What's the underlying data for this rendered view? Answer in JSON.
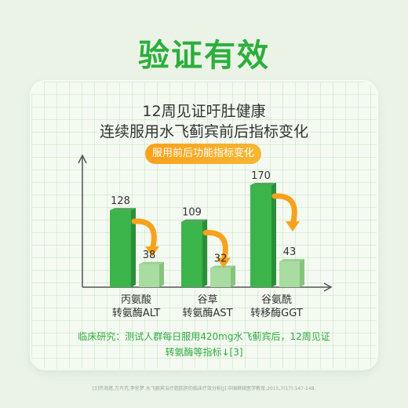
{
  "heading": "验证有效",
  "card": {
    "title_line1": "12周见证吁肚健康",
    "title_line2": "连续服用水飞蓟宾前后指标变化",
    "pill_label": "服用前后功能指标变化",
    "note_line1": "临床研究：测试人群每日服用420mg水飞蓟宾后，12周见证",
    "note_line2": "转氨酶等指标↓[3]",
    "reference": "[3]齐海莲,方卉芃,李伦梦.水飞蓟宾治疗脂肪肝的临床疗效分析[J].中国继续医学教育,2015,7(17):147-148."
  },
  "colors": {
    "heading": "#2cae3c",
    "bar_before": "#3bb44a",
    "bar_after": "#a8dca0",
    "arrow": "#f7a21c",
    "note": "#2eaa3e"
  },
  "chart_data": {
    "type": "bar",
    "categories": [
      {
        "line1": "丙氨酸",
        "line2": "转氨酶ALT"
      },
      {
        "line1": "谷草",
        "line2": "转氨酶AST"
      },
      {
        "line1": "谷氨酰",
        "line2": "转移酶GGT"
      }
    ],
    "series": [
      {
        "values": [
          128,
          109,
          170
        ]
      },
      {
        "values": [
          38,
          32,
          43
        ]
      }
    ],
    "ylim": [
      0,
      200
    ]
  }
}
